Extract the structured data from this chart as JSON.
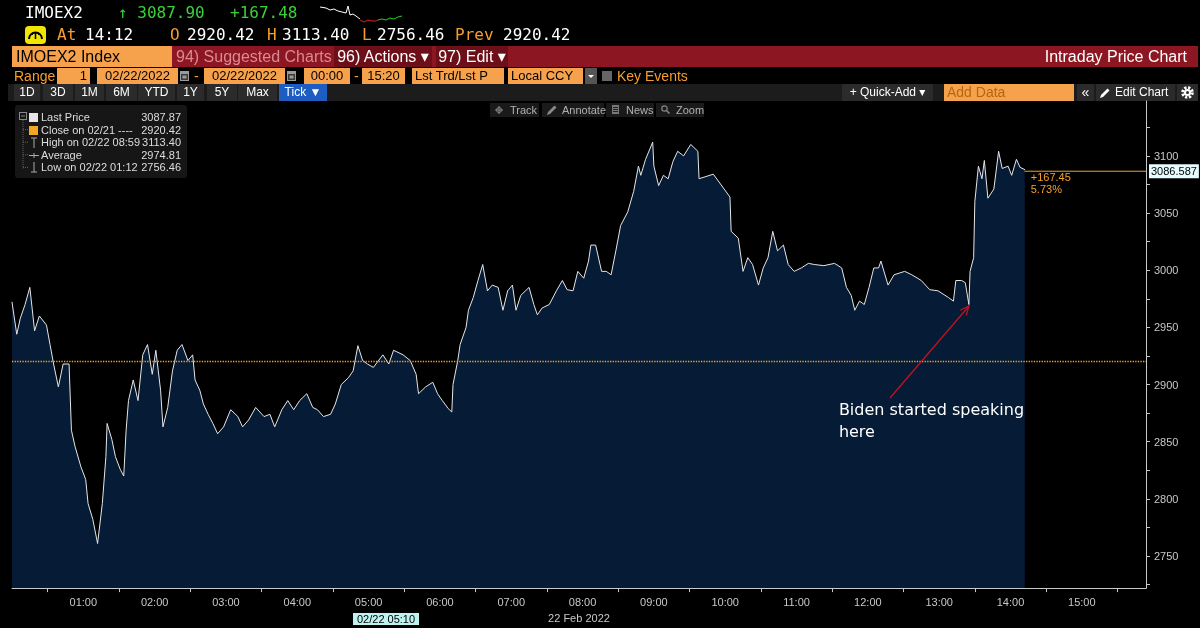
{
  "chart_data": {
    "type": "area",
    "title": "IMOEX2",
    "subtitle": "Intraday Price Chart",
    "xlabel": "22 Feb 2022",
    "x": [
      "2022-02-22T00:00",
      "2022-02-22T00:04",
      "2022-02-22T00:07",
      "2022-02-22T00:11",
      "2022-02-22T00:15",
      "2022-02-22T00:19",
      "2022-02-22T00:23",
      "2022-02-22T00:29",
      "2022-02-22T00:32",
      "2022-02-22T00:35",
      "2022-02-22T00:39",
      "2022-02-22T00:43",
      "2022-02-22T00:48",
      "2022-02-22T00:50",
      "2022-02-22T00:53",
      "2022-02-22T00:58",
      "2022-02-22T01:02",
      "2022-02-22T01:04",
      "2022-02-22T01:08",
      "2022-02-22T01:12",
      "2022-02-22T01:16",
      "2022-02-22T01:19",
      "2022-02-22T01:20",
      "2022-02-22T01:24",
      "2022-02-22T01:27",
      "2022-02-22T01:31",
      "2022-02-22T01:34",
      "2022-02-22T01:36",
      "2022-02-22T01:38",
      "2022-02-22T01:42",
      "2022-02-22T01:46",
      "2022-02-22T01:50",
      "2022-02-22T01:54",
      "2022-02-22T01:58",
      "2022-02-22T02:01",
      "2022-02-22T02:05",
      "2022-02-22T02:07",
      "2022-02-22T02:11",
      "2022-02-22T02:15",
      "2022-02-22T02:19",
      "2022-02-22T02:23",
      "2022-02-22T02:28",
      "2022-02-22T02:32",
      "2022-02-22T02:34",
      "2022-02-22T02:38",
      "2022-02-22T02:41",
      "2022-02-22T02:45",
      "2022-02-22T02:49",
      "2022-02-22T02:53",
      "2022-02-22T02:58",
      "2022-02-22T03:04",
      "2022-02-22T03:10",
      "2022-02-22T03:14",
      "2022-02-22T03:19",
      "2022-02-22T03:25",
      "2022-02-22T03:32",
      "2022-02-22T03:37",
      "2022-02-22T03:41",
      "2022-02-22T03:47",
      "2022-02-22T03:52",
      "2022-02-22T03:57",
      "2022-02-22T04:02",
      "2022-02-22T04:08",
      "2022-02-22T04:13",
      "2022-02-22T04:17",
      "2022-02-22T04:22",
      "2022-02-22T04:28",
      "2022-02-22T04:32",
      "2022-02-22T04:37",
      "2022-02-22T04:43",
      "2022-02-22T04:47",
      "2022-02-22T04:51",
      "2022-02-22T04:55",
      "2022-02-22T04:59",
      "2022-02-22T05:04",
      "2022-02-22T05:12",
      "2022-02-22T05:17",
      "2022-02-22T05:21",
      "2022-02-22T05:29",
      "2022-02-22T05:35",
      "2022-02-22T05:40",
      "2022-02-22T05:42",
      "2022-02-22T05:48",
      "2022-02-22T05:54",
      "2022-02-22T05:58",
      "2022-02-22T06:02",
      "2022-02-22T06:07",
      "2022-02-22T06:10",
      "2022-02-22T06:11",
      "2022-02-22T06:15",
      "2022-02-22T06:17",
      "2022-02-22T06:22",
      "2022-02-22T06:24",
      "2022-02-22T06:28",
      "2022-02-22T06:32",
      "2022-02-22T06:36",
      "2022-02-22T06:40",
      "2022-02-22T06:44",
      "2022-02-22T06:49",
      "2022-02-22T06:53",
      "2022-02-22T06:57",
      "2022-02-22T07:01",
      "2022-02-22T07:04",
      "2022-02-22T07:08",
      "2022-02-22T07:15",
      "2022-02-22T07:19",
      "2022-02-22T07:22",
      "2022-02-22T07:26",
      "2022-02-22T07:32",
      "2022-02-22T07:38",
      "2022-02-22T07:43",
      "2022-02-22T07:47",
      "2022-02-22T07:52",
      "2022-02-22T07:56",
      "2022-02-22T08:01",
      "2022-02-22T08:05",
      "2022-02-22T08:07",
      "2022-02-22T08:11",
      "2022-02-22T08:16",
      "2022-02-22T08:20",
      "2022-02-22T08:24",
      "2022-02-22T08:28",
      "2022-02-22T08:32",
      "2022-02-22T08:38",
      "2022-02-22T08:43",
      "2022-02-22T08:47",
      "2022-02-22T08:49",
      "2022-02-22T08:53",
      "2022-02-22T08:59",
      "2022-02-22T09:00",
      "2022-02-22T09:04",
      "2022-02-22T09:08",
      "2022-02-22T09:12",
      "2022-02-22T09:16",
      "2022-02-22T09:20",
      "2022-02-22T09:25",
      "2022-02-22T09:31",
      "2022-02-22T09:37",
      "2022-02-22T09:38",
      "2022-02-22T09:50",
      "2022-02-22T10:04",
      "2022-02-22T10:05",
      "2022-02-22T10:11",
      "2022-02-22T10:15",
      "2022-02-22T10:19",
      "2022-02-22T10:23",
      "2022-02-22T10:28",
      "2022-02-22T10:32",
      "2022-02-22T10:36",
      "2022-02-22T10:40",
      "2022-02-22T10:44",
      "2022-02-22T10:49",
      "2022-02-22T10:53",
      "2022-02-22T10:58",
      "2022-02-22T11:04",
      "2022-02-22T11:10",
      "2022-02-22T11:15",
      "2022-02-22T11:23",
      "2022-02-22T11:32",
      "2022-02-22T11:38",
      "2022-02-22T11:42",
      "2022-02-22T11:46",
      "2022-02-22T11:49",
      "2022-02-22T11:53",
      "2022-02-22T11:57",
      "2022-02-22T12:01",
      "2022-02-22T12:05",
      "2022-02-22T12:09",
      "2022-02-22T12:11",
      "2022-02-22T12:17",
      "2022-02-22T12:22",
      "2022-02-22T12:31",
      "2022-02-22T12:37",
      "2022-02-22T12:45",
      "2022-02-22T12:52",
      "2022-02-22T12:59",
      "2022-02-22T13:08",
      "2022-02-22T13:12",
      "2022-02-22T13:14",
      "2022-02-22T13:19",
      "2022-02-22T13:22",
      "2022-02-22T13:25",
      "2022-02-22T13:26",
      "2022-02-22T13:29",
      "2022-02-22T13:30",
      "2022-02-22T13:33",
      "2022-02-22T13:36",
      "2022-02-22T13:38",
      "2022-02-22T13:41",
      "2022-02-22T13:46",
      "2022-02-22T13:50",
      "2022-02-22T13:53",
      "2022-02-22T13:58",
      "2022-02-22T14:01",
      "2022-02-22T14:05",
      "2022-02-22T14:08",
      "2022-02-22T14:12"
    ],
    "series": [
      {
        "name": "Last Price",
        "color": "#e6e6e6",
        "values": [
          2972,
          2944,
          2958,
          2970,
          2985,
          2947,
          2960,
          2952,
          2935,
          2918,
          2898,
          2918,
          2918,
          2860,
          2846,
          2828,
          2817,
          2796,
          2782,
          2761,
          2796,
          2837,
          2866,
          2852,
          2837,
          2826,
          2820,
          2860,
          2886,
          2904,
          2886,
          2926,
          2935,
          2909,
          2930,
          2895,
          2863,
          2880,
          2912,
          2930,
          2935,
          2921,
          2926,
          2904,
          2895,
          2883,
          2874,
          2866,
          2857,
          2863,
          2878,
          2872,
          2863,
          2869,
          2880,
          2872,
          2874,
          2863,
          2878,
          2886,
          2878,
          2886,
          2892,
          2880,
          2878,
          2872,
          2874,
          2883,
          2900,
          2906,
          2912,
          2934,
          2921,
          2918,
          2915,
          2926,
          2918,
          2930,
          2926,
          2921,
          2909,
          2892,
          2898,
          2902,
          2892,
          2886,
          2879,
          2876,
          2900,
          2921,
          2935,
          2950,
          2965,
          2976,
          2991,
          3005,
          2982,
          2987,
          2985,
          2965,
          2982,
          2987,
          2965,
          2978,
          2985,
          2970,
          2961,
          2967,
          2970,
          2982,
          2991,
          2983,
          2982,
          2999,
          2993,
          3008,
          3022,
          3022,
          2999,
          2999,
          2996,
          3017,
          3039,
          3051,
          3069,
          3091,
          3083,
          3097,
          3112,
          3091,
          3074,
          3083,
          3080,
          3095,
          3104,
          3100,
          3110,
          3104,
          3080,
          3084,
          3064,
          3034,
          3028,
          2999,
          3011,
          3005,
          2987,
          3002,
          3011,
          3034,
          3017,
          3022,
          3005,
          2999,
          3002,
          3006,
          3005,
          3004,
          3006,
          3002,
          2985,
          2978,
          2965,
          2973,
          2970,
          2985,
          3002,
          3002,
          3008,
          2987,
          2996,
          2999,
          2996,
          2991,
          2983,
          2982,
          2976,
          2973,
          2991,
          2991,
          2989,
          2970,
          2999,
          3011,
          3060,
          3091,
          3080,
          3096,
          3063,
          3071,
          3104,
          3089,
          3091,
          3083,
          3097,
          3090,
          3088
        ]
      },
      {
        "type": "line",
        "color": "#f0a030",
        "x": [
          "2022-02-22T14:12",
          "2022-02-22T15:54"
        ],
        "values": [
          3086.587,
          3086.587
        ],
        "value_labels": [
          null,
          "3086.587"
        ]
      }
    ],
    "xlim": [
      "2022-02-22T00:00",
      "2022-02-22T15:54"
    ],
    "xticks": [
      {
        "value": "2022-02-22T00:30",
        "label": null
      },
      {
        "value": "2022-02-22T01:00",
        "label": "01:00"
      },
      {
        "value": "2022-02-22T01:30",
        "label": null
      },
      {
        "value": "2022-02-22T02:00",
        "label": "02:00"
      },
      {
        "value": "2022-02-22T02:30",
        "label": null
      },
      {
        "value": "2022-02-22T03:00",
        "label": "03:00"
      },
      {
        "value": "2022-02-22T03:30",
        "label": null
      },
      {
        "value": "2022-02-22T04:00",
        "label": "04:00"
      },
      {
        "value": "2022-02-22T04:30",
        "label": null
      },
      {
        "value": "2022-02-22T05:00",
        "label": "05:00"
      },
      {
        "value": "2022-02-22T05:30",
        "label": null
      },
      {
        "value": "2022-02-22T06:00",
        "label": "06:00"
      },
      {
        "value": "2022-02-22T06:30",
        "label": null
      },
      {
        "value": "2022-02-22T07:00",
        "label": "07:00"
      },
      {
        "value": "2022-02-22T07:30",
        "label": null
      },
      {
        "value": "2022-02-22T08:00",
        "label": "08:00"
      },
      {
        "value": "2022-02-22T08:30",
        "label": null
      },
      {
        "value": "2022-02-22T09:00",
        "label": "09:00"
      },
      {
        "value": "2022-02-22T09:30",
        "label": null
      },
      {
        "value": "2022-02-22T10:00",
        "label": "10:00"
      },
      {
        "value": "2022-02-22T10:30",
        "label": null
      },
      {
        "value": "2022-02-22T11:00",
        "label": "11:00"
      },
      {
        "value": "2022-02-22T11:30",
        "label": null
      },
      {
        "value": "2022-02-22T12:00",
        "label": "12:00"
      },
      {
        "value": "2022-02-22T12:30",
        "label": null
      },
      {
        "value": "2022-02-22T13:00",
        "label": "13:00"
      },
      {
        "value": "2022-02-22T13:30",
        "label": null
      },
      {
        "value": "2022-02-22T14:00",
        "label": "14:00"
      },
      {
        "value": "2022-02-22T14:30",
        "label": null
      },
      {
        "value": "2022-02-22T15:00",
        "label": "15:00"
      },
      {
        "value": "2022-02-22T15:30",
        "label": null
      }
    ],
    "ylim": [
      2722,
      3148
    ],
    "yticks": [
      {
        "value": 2725,
        "label": null
      },
      2750,
      {
        "value": 2775,
        "label": null
      },
      2800,
      {
        "value": 2825,
        "label": null
      },
      2850,
      {
        "value": 2875,
        "label": null
      },
      2900,
      {
        "value": 2925,
        "label": null
      },
      2950,
      {
        "value": 2975,
        "label": null
      },
      3000,
      {
        "value": 3025,
        "label": null
      },
      3050,
      {
        "value": 3075,
        "label": null
      },
      3100,
      {
        "value": 3125,
        "label": null
      }
    ],
    "ref_lines": [
      {
        "axis": "y",
        "value": 2920.42,
        "label": "Close on 02/21 ----",
        "color": "#f5a623",
        "line_style": "dotted"
      }
    ],
    "legend": "top left",
    "marker": "none",
    "line_style": "solid",
    "annotations": [
      {
        "text": "Biden started speaking here",
        "x": "2022-02-22T13:25",
        "y": 2970
      },
      {
        "text": "+167.45",
        "x": "2022-02-22T14:12",
        "y": 3088
      },
      {
        "text": "5.73%",
        "x": "2022-02-22T14:12",
        "y": 3088
      },
      "02/22 05:10",
      "3087.87",
      "High on 02/22 08:59 3113.40",
      "Average 2974.81",
      "Low on 02/22 01:12 2756.46",
      "↑ 3087.90",
      "+167.48",
      "At",
      "14:12",
      "O",
      "2920.42",
      "H",
      "3113.40",
      "L",
      "2756.46",
      "Prev",
      "2920.42",
      "IMOEX2 Index",
      "94) Suggested Charts",
      "96) Actions ▾",
      "97) Edit ▾",
      "Range",
      "1",
      "02/22/2022",
      "-",
      "02/22/2022",
      "00:00",
      "-",
      "15:20",
      "Lst Trd/Lst P",
      "Local CCY",
      "Key Events",
      "1D",
      "3D",
      "1M",
      "6M",
      "YTD",
      "1Y",
      "5Y",
      "Max",
      "Tick ▼",
      "+ Quick-Add ▾",
      "Add Data",
      "«",
      "Edit Chart",
      "Track",
      "Annotate",
      "News",
      "Zoom"
    ]
  }
}
